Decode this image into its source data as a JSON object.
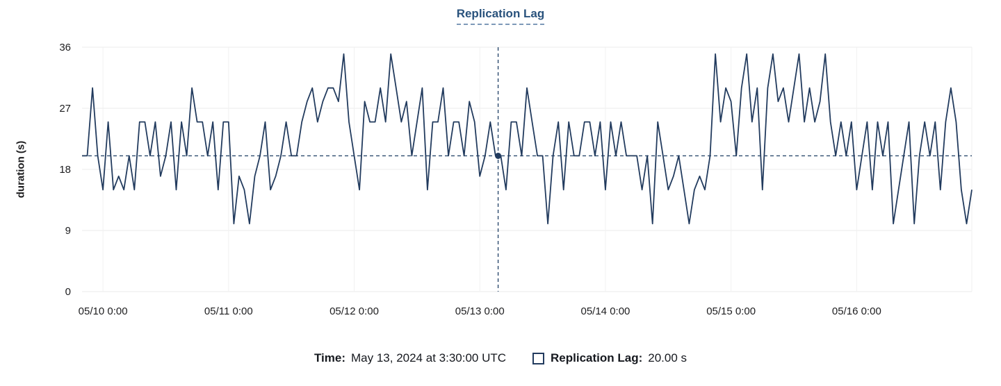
{
  "chart_data": {
    "type": "line",
    "title": "Replication Lag",
    "xlabel": "",
    "ylabel": "duration (s)",
    "ylim": [
      0,
      36
    ],
    "yticks": [
      0,
      9,
      18,
      27,
      36
    ],
    "grid": true,
    "legend_position": "bottom",
    "x_total_hours": 170,
    "x_tick_hours": [
      4,
      28,
      52,
      76,
      100,
      124,
      148
    ],
    "x_tick_labels": [
      "05/10 0:00",
      "05/11 0:00",
      "05/12 0:00",
      "05/13 0:00",
      "05/14 0:00",
      "05/15 0:00",
      "05/16 0:00"
    ],
    "series": [
      {
        "name": "Replication Lag",
        "unit": "s",
        "values": [
          20,
          20,
          30,
          20,
          15,
          25,
          15,
          17,
          15,
          20,
          15,
          25,
          25,
          20,
          25,
          17,
          20,
          25,
          15,
          25,
          20,
          30,
          25,
          25,
          20,
          25,
          15,
          25,
          25,
          10,
          17,
          15,
          10,
          17,
          20,
          25,
          15,
          17,
          20,
          25,
          20,
          20,
          25,
          28,
          30,
          25,
          28,
          30,
          30,
          28,
          35,
          25,
          20,
          15,
          28,
          25,
          25,
          30,
          25,
          35,
          30,
          25,
          28,
          20,
          25,
          30,
          15,
          25,
          25,
          30,
          20,
          25,
          25,
          20,
          28,
          25,
          17,
          20,
          25,
          20,
          20,
          15,
          25,
          25,
          20,
          30,
          25,
          20,
          20,
          10,
          20,
          25,
          15,
          25,
          20,
          20,
          25,
          25,
          20,
          25,
          15,
          25,
          20,
          25,
          20,
          20,
          20,
          15,
          20,
          10,
          25,
          20,
          15,
          17,
          20,
          15,
          10,
          15,
          17,
          15,
          20,
          35,
          25,
          30,
          28,
          20,
          30,
          35,
          25,
          30,
          15,
          30,
          35,
          28,
          30,
          25,
          30,
          35,
          25,
          30,
          25,
          28,
          35,
          25,
          20,
          25,
          20,
          25,
          15,
          20,
          25,
          15,
          25,
          20,
          25,
          10,
          15,
          20,
          25,
          10,
          20,
          25,
          20,
          25,
          15,
          25,
          30,
          25,
          15,
          10,
          15
        ]
      }
    ],
    "crosshair": {
      "x_hours": 79.5,
      "value": 20,
      "time_label": "May 13, 2024 at 3:30:00 UTC",
      "value_label": "20.00 s"
    }
  },
  "tooltip": {
    "time_label": "Time:",
    "time_value": "May 13, 2024 at 3:30:00 UTC",
    "series_label": "Replication Lag:",
    "series_value": "20.00 s"
  },
  "colors": {
    "series": "#223b5e",
    "crosshair": "#2c4a6e",
    "grid": "#ebebeb",
    "grid_vertical": "#f1f1f1",
    "axis_text": "#1d1d1f",
    "title": "#29527c"
  }
}
